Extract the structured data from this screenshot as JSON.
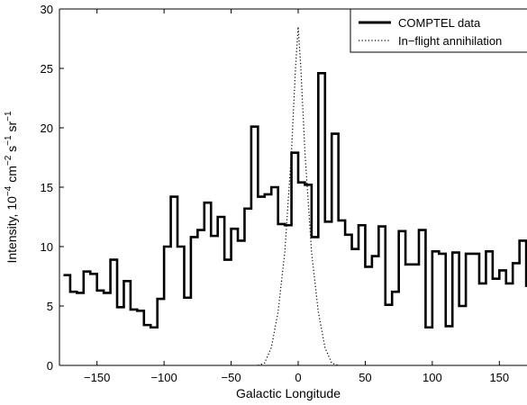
{
  "chart_data": {
    "type": "line",
    "title": "",
    "xlabel": "Galactic Longitude",
    "ylabel_parts": [
      "Intensity, 10",
      "−4",
      " cm",
      "−2",
      " s",
      "−1",
      " sr",
      "−1"
    ],
    "xlim": [
      -178,
      178
    ],
    "ylim": [
      0,
      30
    ],
    "xticks": [
      -150,
      -100,
      -50,
      0,
      50,
      100,
      150
    ],
    "xtick_labels": [
      "−150",
      "−100",
      "−50",
      "0",
      "50",
      "100",
      "150"
    ],
    "yticks": [
      0,
      5,
      10,
      15,
      20,
      25,
      30
    ],
    "ytick_labels": [
      "0",
      "5",
      "10",
      "15",
      "20",
      "25",
      "30"
    ],
    "grid": false,
    "legend_position": "top-right",
    "series": [
      {
        "name": "COMPTEL data",
        "style": "solid-step",
        "color": "#000000",
        "x": [
          -172.5,
          -167.5,
          -162.5,
          -157.5,
          -152.5,
          -147.5,
          -142.5,
          -137.5,
          -132.5,
          -127.5,
          -122.5,
          -117.5,
          -112.5,
          -107.5,
          -102.5,
          -97.5,
          -92.5,
          -87.5,
          -82.5,
          -77.5,
          -72.5,
          -67.5,
          -62.5,
          -57.5,
          -52.5,
          -47.5,
          -42.5,
          -37.5,
          -32.5,
          -27.5,
          -22.5,
          -17.5,
          -12.5,
          -7.5,
          -2.5,
          2.5,
          7.5,
          12.5,
          17.5,
          22.5,
          27.5,
          32.5,
          37.5,
          42.5,
          47.5,
          52.5,
          57.5,
          62.5,
          67.5,
          72.5,
          77.5,
          82.5,
          87.5,
          92.5,
          97.5,
          102.5,
          107.5,
          112.5,
          117.5,
          122.5,
          127.5,
          132.5,
          137.5,
          142.5,
          147.5,
          152.5,
          157.5,
          162.5,
          167.5,
          172.5
        ],
        "y": [
          7.6,
          6.2,
          6.1,
          7.9,
          7.7,
          6.3,
          6.1,
          8.9,
          4.9,
          7.1,
          4.7,
          4.6,
          3.4,
          3.2,
          5.6,
          10.0,
          14.2,
          10.0,
          5.7,
          10.8,
          11.4,
          13.7,
          10.9,
          12.5,
          8.9,
          11.5,
          10.5,
          13.2,
          20.1,
          14.2,
          14.4,
          15.0,
          11.9,
          11.8,
          17.9,
          15.4,
          15.2,
          10.8,
          24.6,
          12.1,
          19.5,
          12.2,
          11.0,
          9.8,
          11.8,
          8.3,
          9.2,
          11.7,
          5.1,
          6.2,
          11.3,
          8.5,
          8.5,
          11.4,
          3.2,
          9.6,
          9.4,
          3.3,
          9.5,
          5.0,
          9.4,
          9.4,
          6.9,
          9.6,
          7.3,
          8.0,
          6.9,
          8.6,
          10.5,
          6.7
        ]
      },
      {
        "name": "In−flight annihilation",
        "style": "dotted",
        "color": "#000000",
        "x": [
          -30,
          -25,
          -20,
          -15,
          -10,
          -5,
          -2,
          0,
          2,
          5,
          10,
          15,
          20,
          25,
          30
        ],
        "y": [
          0,
          0.2,
          1.5,
          4.5,
          9.5,
          18.0,
          25.0,
          28.5,
          25.0,
          18.0,
          9.5,
          4.5,
          1.5,
          0.2,
          0
        ]
      }
    ]
  }
}
